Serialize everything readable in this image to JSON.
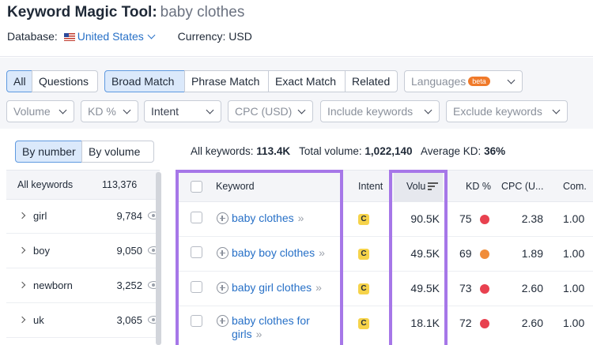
{
  "header": {
    "tool_title": "Keyword Magic Tool:",
    "query": "baby clothes",
    "database_label": "Database:",
    "database_value": "United States",
    "currency": "Currency: USD"
  },
  "filters": {
    "scope_all": "All",
    "scope_questions": "Questions",
    "match_broad": "Broad Match",
    "match_phrase": "Phrase Match",
    "match_exact": "Exact Match",
    "match_related": "Related",
    "languages": "Languages",
    "beta_badge": "beta",
    "volume": "Volume",
    "kd": "KD %",
    "intent": "Intent",
    "cpc": "CPC (USD)",
    "include": "Include keywords",
    "exclude": "Exclude keywords"
  },
  "groups": {
    "by_number": "By number",
    "by_volume": "By volume",
    "all_label": "All keywords",
    "all_count": "113,376",
    "items": [
      {
        "label": "girl",
        "count": "9,784"
      },
      {
        "label": "boy",
        "count": "9,050"
      },
      {
        "label": "newborn",
        "count": "3,252"
      },
      {
        "label": "uk",
        "count": "3,065"
      }
    ]
  },
  "summary": {
    "all_keywords_label": "All keywords:",
    "all_keywords_value": "113.4K",
    "total_volume_label": "Total volume:",
    "total_volume_value": "1,022,140",
    "avg_kd_label": "Average KD:",
    "avg_kd_value": "36%"
  },
  "table": {
    "columns": {
      "keyword": "Keyword",
      "intent": "Intent",
      "volume": "Volu",
      "kd": "KD %",
      "cpc": "CPC (U...",
      "com": "Com."
    },
    "rows": [
      {
        "keyword": "baby clothes",
        "keyword_line2": "",
        "intent": "C",
        "volume": "90.5K",
        "kd": "75",
        "kd_color": "#e8414f",
        "cpc": "2.38",
        "com": "1.00"
      },
      {
        "keyword": "baby boy clothes",
        "keyword_line2": "",
        "intent": "C",
        "volume": "49.5K",
        "kd": "69",
        "kd_color": "#f08c3a",
        "cpc": "1.89",
        "com": "1.00"
      },
      {
        "keyword": "baby girl clothes",
        "keyword_line2": "",
        "intent": "C",
        "volume": "49.5K",
        "kd": "73",
        "kd_color": "#e8414f",
        "cpc": "2.60",
        "com": "1.00"
      },
      {
        "keyword": "baby clothes for",
        "keyword_line2": "girls",
        "intent": "C",
        "volume": "18.1K",
        "kd": "72",
        "kd_color": "#e8414f",
        "cpc": "2.60",
        "com": "1.00"
      }
    ]
  },
  "colors": {
    "accent": "#2770c7",
    "highlight": "#a677e8",
    "intent_commercial": "#f6d34a"
  }
}
